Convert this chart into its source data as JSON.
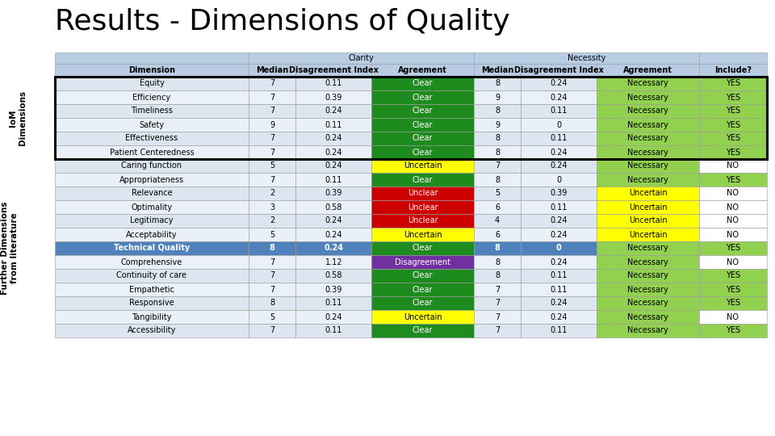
{
  "title": "Results - Dimensions of Quality",
  "side_label_top": "IoM\nDimensions",
  "side_label_bottom": "Further Dimensions\nfrom literature",
  "header_row2": [
    "Dimension",
    "Median",
    "Disagreement Index",
    "Agreement",
    "Median",
    "Disagreement Index",
    "Agreement",
    "Include?"
  ],
  "rows": [
    [
      "Equity",
      "7",
      "0.11",
      "Clear",
      "8",
      "0.24",
      "Necessary",
      "YES"
    ],
    [
      "Efficiency",
      "7",
      "0.39",
      "Clear",
      "9",
      "0.24",
      "Necessary",
      "YES"
    ],
    [
      "Timeliness",
      "7",
      "0.24",
      "Clear",
      "8",
      "0.11",
      "Necessary",
      "YES"
    ],
    [
      "Safety",
      "9",
      "0.11",
      "Clear",
      "9",
      "0",
      "Necessary",
      "YES"
    ],
    [
      "Effectiveness",
      "7",
      "0.24",
      "Clear",
      "8",
      "0.11",
      "Necessary",
      "YES"
    ],
    [
      "Patient Centeredness",
      "7",
      "0.24",
      "Clear",
      "8",
      "0.24",
      "Necessary",
      "YES"
    ],
    [
      "Caring function",
      "5",
      "0.24",
      "Uncertain",
      "7",
      "0.24",
      "Necessary",
      "NO"
    ],
    [
      "Appropriateness",
      "7",
      "0.11",
      "Clear",
      "8",
      "0",
      "Necessary",
      "YES"
    ],
    [
      "Relevance",
      "2",
      "0.39",
      "Unclear",
      "5",
      "0.39",
      "Uncertain",
      "NO"
    ],
    [
      "Optimality",
      "3",
      "0.58",
      "Unclear",
      "6",
      "0.11",
      "Uncertain",
      "NO"
    ],
    [
      "Legitimacy",
      "2",
      "0.24",
      "Unclear",
      "4",
      "0.24",
      "Uncertain",
      "NO"
    ],
    [
      "Acceptability",
      "5",
      "0.24",
      "Uncertain",
      "6",
      "0.24",
      "Uncertain",
      "NO"
    ],
    [
      "Technical Quality",
      "8",
      "0.24",
      "Clear",
      "8",
      "0",
      "Necessary",
      "YES"
    ],
    [
      "Comprehensive",
      "7",
      "1.12",
      "Disagreement",
      "8",
      "0.24",
      "Necessary",
      "NO"
    ],
    [
      "Continuity of care",
      "7",
      "0.58",
      "Clear",
      "8",
      "0.11",
      "Necessary",
      "YES"
    ],
    [
      "Empathetic",
      "7",
      "0.39",
      "Clear",
      "7",
      "0.11",
      "Necessary",
      "YES"
    ],
    [
      "Responsive",
      "8",
      "0.11",
      "Clear",
      "7",
      "0.24",
      "Necessary",
      "YES"
    ],
    [
      "Tangibility",
      "5",
      "0.24",
      "Uncertain",
      "7",
      "0.24",
      "Necessary",
      "NO"
    ],
    [
      "Accessibility",
      "7",
      "0.11",
      "Clear",
      "7",
      "0.11",
      "Necessary",
      "YES"
    ]
  ],
  "iom_rows": [
    0,
    1,
    2,
    3,
    4,
    5
  ],
  "tech_quality_row": 12,
  "header_bg": "#b8cce4",
  "row_bg_even": "#dce6f1",
  "row_bg_odd": "#eaf0f7",
  "tech_bg": "#4f81bd",
  "title_fontsize": 26,
  "header_fontsize": 7,
  "cell_fontsize": 7,
  "side_label_fontsize": 7.5,
  "col_fracs": [
    148,
    36,
    58,
    78,
    36,
    58,
    78,
    52
  ]
}
